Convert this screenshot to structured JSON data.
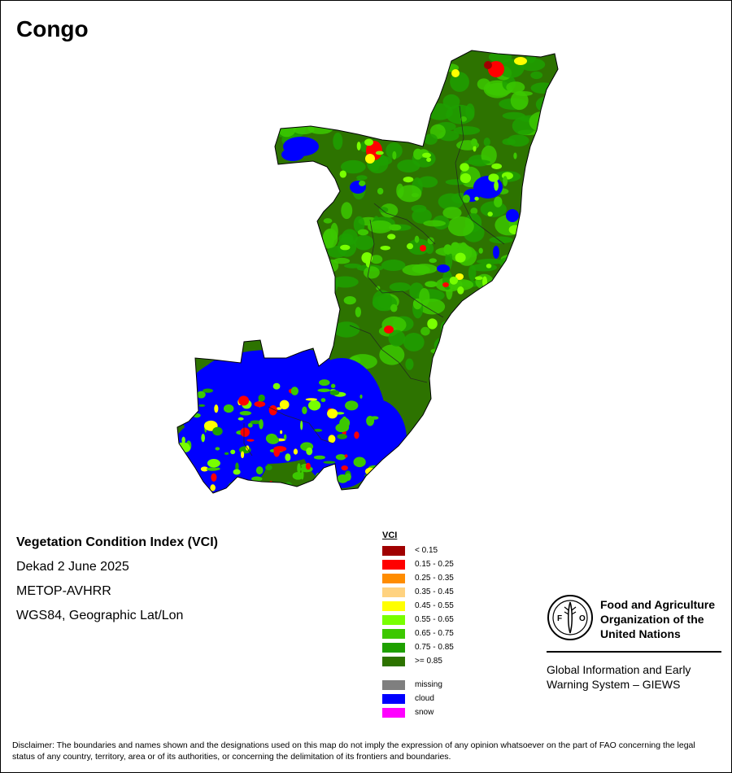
{
  "map_title": "Congo",
  "info": {
    "index_name": "Vegetation Condition Index (VCI)",
    "period": "Dekad 2 June 2025",
    "sensor": "METOP-AVHRR",
    "projection": "WGS84, Geographic Lat/Lon"
  },
  "legend": {
    "title": "VCI",
    "classes": [
      {
        "label": "< 0.15",
        "color": "#a00000"
      },
      {
        "label": "0.15 - 0.25",
        "color": "#ff0000"
      },
      {
        "label": "0.25 - 0.35",
        "color": "#ff8c00"
      },
      {
        "label": "0.35 - 0.45",
        "color": "#ffd27f"
      },
      {
        "label": "0.45 - 0.55",
        "color": "#ffff00"
      },
      {
        "label": "0.55 - 0.65",
        "color": "#78ff00"
      },
      {
        "label": "0.65 - 0.75",
        "color": "#3cc800"
      },
      {
        "label": "0.75 - 0.85",
        "color": "#1ea000"
      },
      {
        "label": ">= 0.85",
        "color": "#2d7300"
      }
    ],
    "other": [
      {
        "label": "missing",
        "color": "#7f7f7f"
      },
      {
        "label": "cloud",
        "color": "#0000ff"
      },
      {
        "label": "snow",
        "color": "#ff00ff"
      }
    ]
  },
  "org": {
    "logo_text": "FAO",
    "logo_motto": "FIAT PANIS",
    "name_lines": [
      "Food and Agriculture",
      "Organization of the",
      "United Nations"
    ],
    "system_lines": [
      "Global Information and Early",
      "Warning System – GIEWS"
    ]
  },
  "disclaimer": "Disclaimer: The boundaries and names shown and the designations used on this map do not imply the expression of any opinion whatsoever on the part of FAO concerning the legal status of any country, territory, area or of its authorities, or concerning the delimitation of its frontiers and boundaries."
}
